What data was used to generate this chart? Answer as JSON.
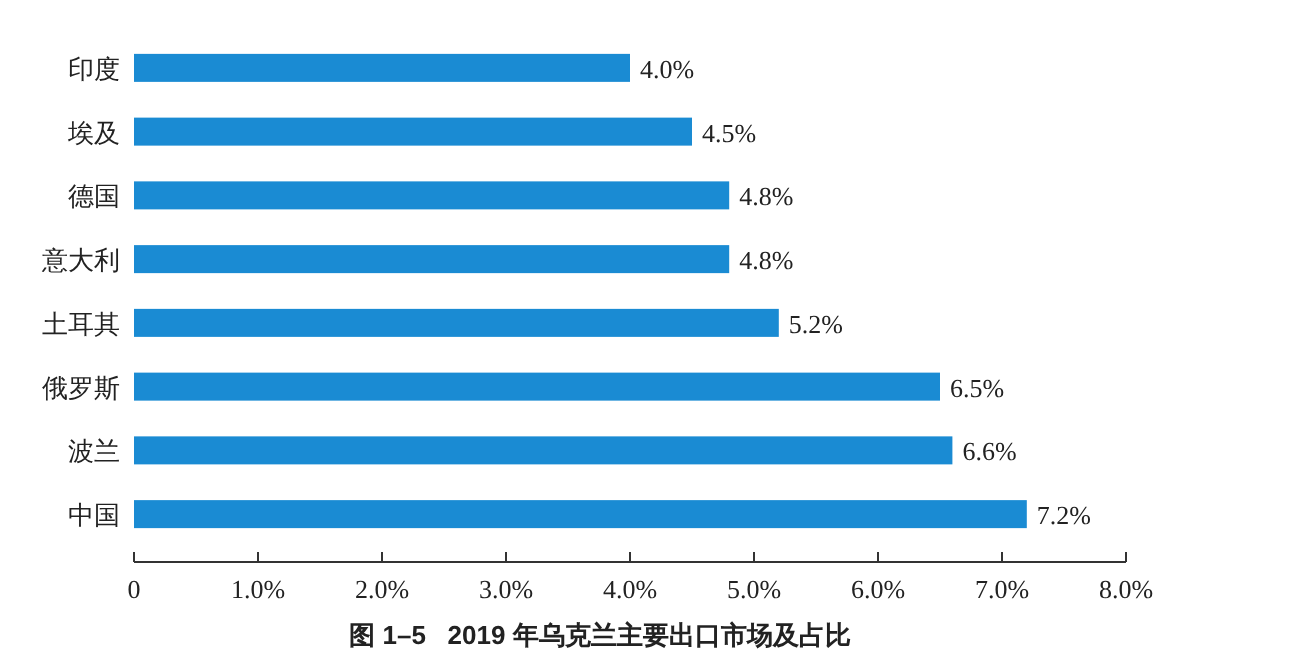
{
  "chart_data": {
    "type": "bar",
    "orientation": "horizontal",
    "title": "图 1–5   2019 年乌克兰主要出口市场及占比",
    "categories": [
      "印度",
      "埃及",
      "德国",
      "意大利",
      "土耳其",
      "俄罗斯",
      "波兰",
      "中国"
    ],
    "values": [
      4.0,
      4.5,
      4.8,
      4.8,
      5.2,
      6.5,
      6.6,
      7.2
    ],
    "value_labels": [
      "4.0%",
      "4.5%",
      "4.8%",
      "4.8%",
      "5.2%",
      "6.5%",
      "6.6%",
      "7.2%"
    ],
    "color": "#1a8bd3",
    "xlim": [
      0,
      8
    ],
    "xticks": [
      0,
      {
        "value": 1,
        "label": "1.0%"
      },
      {
        "value": 2,
        "label": "2.0%"
      },
      {
        "value": 3,
        "label": "3.0%"
      },
      {
        "value": 4,
        "label": "4.0%"
      },
      {
        "value": 5,
        "label": "5.0%"
      },
      {
        "value": 6,
        "label": "6.0%"
      },
      {
        "value": 7,
        "label": "7.0%"
      },
      {
        "value": 8,
        "label": "8.0%"
      }
    ],
    "grid": false
  }
}
